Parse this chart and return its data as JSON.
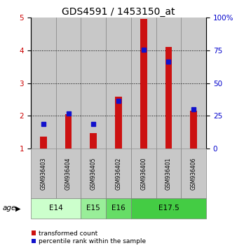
{
  "title": "GDS4591 / 1453150_at",
  "samples": [
    "GSM936403",
    "GSM936404",
    "GSM936405",
    "GSM936402",
    "GSM936400",
    "GSM936401",
    "GSM936406"
  ],
  "red_values": [
    1.38,
    2.05,
    1.48,
    2.58,
    4.95,
    4.1,
    2.15
  ],
  "blue_values": [
    1.75,
    2.08,
    1.75,
    2.45,
    4.02,
    3.65,
    2.2
  ],
  "age_groups": [
    {
      "label": "E14",
      "start": 0,
      "end": 2,
      "color": "#ccffcc"
    },
    {
      "label": "E15",
      "start": 2,
      "end": 3,
      "color": "#99ee99"
    },
    {
      "label": "E16",
      "start": 3,
      "end": 4,
      "color": "#66dd66"
    },
    {
      "label": "E17.5",
      "start": 4,
      "end": 7,
      "color": "#44cc44"
    }
  ],
  "ylim": [
    1,
    5
  ],
  "yticks_left": [
    1,
    2,
    3,
    4,
    5
  ],
  "yticks_right": [
    0,
    25,
    50,
    75,
    100
  ],
  "ylabel_left_color": "#cc0000",
  "ylabel_right_color": "#0000cc",
  "bar_color_red": "#cc1111",
  "bar_color_blue": "#1111cc",
  "legend_red": "transformed count",
  "legend_blue": "percentile rank within the sample",
  "age_label": "age",
  "bg_sample_color": "#c8c8c8",
  "title_fontsize": 10,
  "tick_fontsize": 7.5,
  "label_fontsize": 7.5
}
